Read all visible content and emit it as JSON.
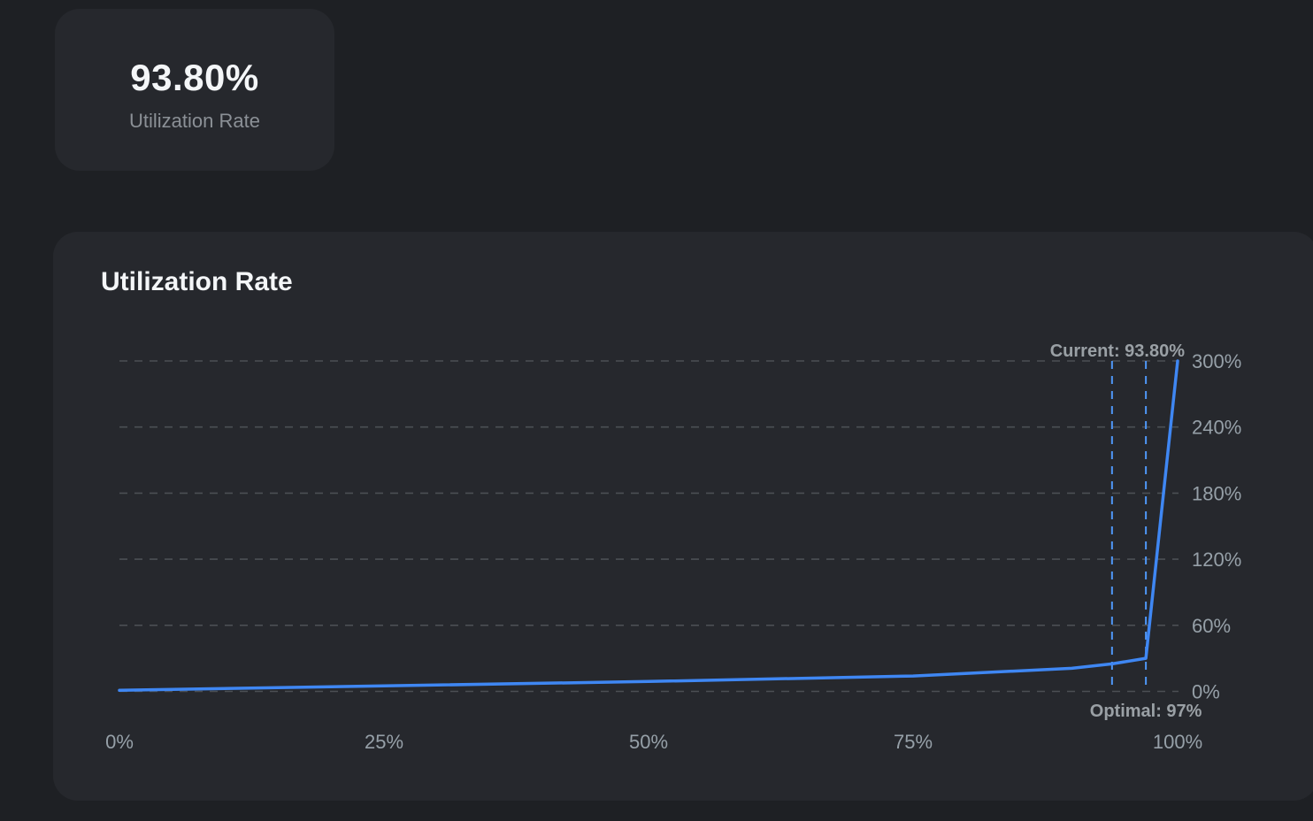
{
  "theme": {
    "page_bg": "#1e2024",
    "card_bg": "#26282d",
    "text_primary": "#f4f6f8",
    "text_secondary": "#8b9096",
    "accent_blue": "#3f87f3"
  },
  "stat_card": {
    "value": "93.80%",
    "label": "Utilization Rate"
  },
  "chart_card": {
    "title": "Utilization Rate"
  },
  "chart_data": {
    "type": "line",
    "title": "Utilization Rate",
    "xlabel": "",
    "ylabel": "",
    "x": [
      0,
      25,
      50,
      75,
      90,
      93.8,
      97,
      100
    ],
    "y": [
      1,
      5,
      9,
      14,
      21,
      25,
      30,
      300
    ],
    "xlim": [
      0,
      100
    ],
    "ylim": [
      0,
      300
    ],
    "x_ticks": [
      0,
      25,
      50,
      75,
      100
    ],
    "x_tick_labels": [
      "0%",
      "25%",
      "50%",
      "75%",
      "100%"
    ],
    "y_ticks": [
      0,
      60,
      120,
      180,
      240,
      300
    ],
    "y_tick_labels": [
      "0%",
      "60%",
      "120%",
      "180%",
      "240%",
      "300%"
    ],
    "grid": true,
    "legend": false,
    "line_color": "#3f87f3",
    "marker_line_color": "#4f97f7",
    "grid_color": "#4b4f54",
    "tick_label_color": "#96a0a8",
    "annotation_color": "#9aa0a5",
    "markers": [
      {
        "name": "current",
        "label": "Current: 93.80%",
        "x": 93.8,
        "label_position": "top-right"
      },
      {
        "name": "optimal",
        "label": "Optimal: 97%",
        "x": 97,
        "label_position": "bottom-center"
      }
    ]
  }
}
